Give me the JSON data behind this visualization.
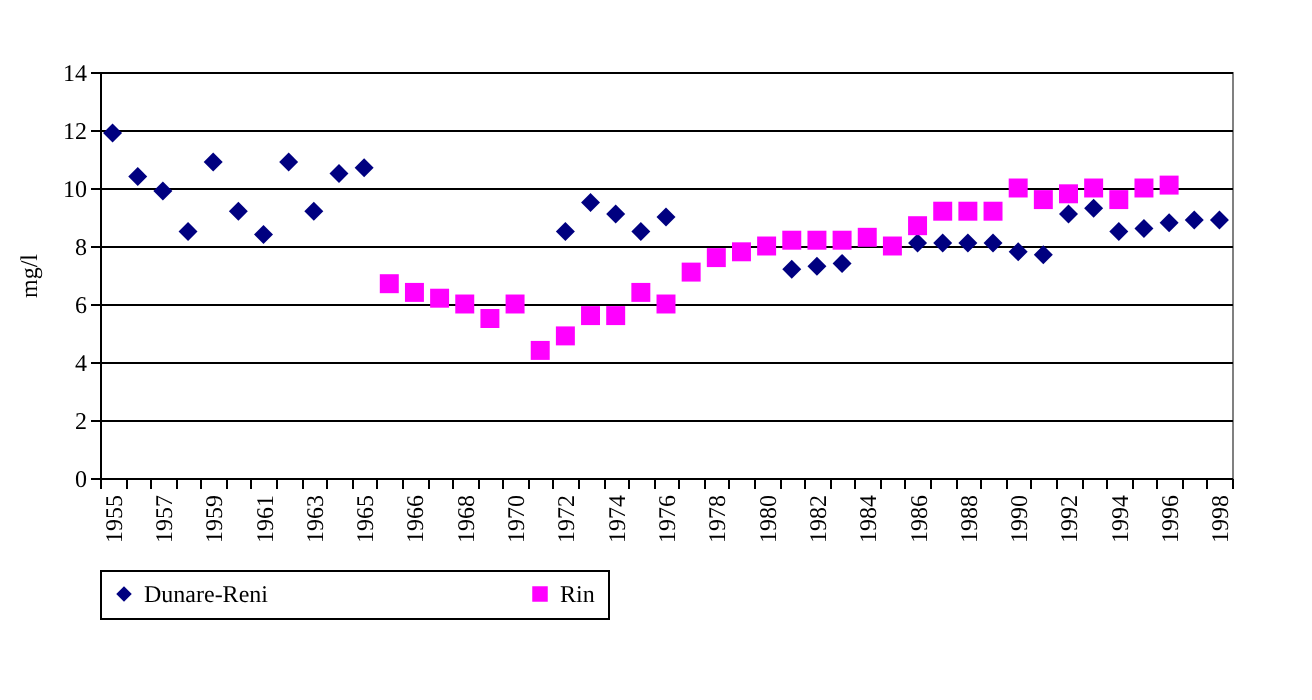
{
  "chart_data": {
    "type": "scatter",
    "ylabel": "mg/l",
    "categories": [
      "1955",
      null,
      "1957",
      null,
      "1959",
      null,
      "1961",
      null,
      "1963",
      null,
      "1965",
      null,
      "1966",
      null,
      "1968",
      null,
      "1970",
      null,
      "1972",
      null,
      "1974",
      null,
      "1976",
      null,
      "1978",
      null,
      "1980",
      null,
      "1982",
      null,
      "1984",
      null,
      "1986",
      null,
      "1988",
      null,
      "1990",
      null,
      "1992",
      null,
      "1994",
      null,
      "1996",
      null,
      "1998"
    ],
    "series": [
      {
        "name": "Dunare-Reni",
        "color": "#000080",
        "marker": "diamond",
        "values": [
          11.9,
          10.4,
          9.9,
          8.5,
          10.9,
          9.2,
          8.4,
          10.9,
          9.2,
          10.5,
          10.7,
          null,
          null,
          null,
          null,
          null,
          null,
          null,
          8.5,
          9.5,
          9.1,
          8.5,
          9.0,
          null,
          null,
          null,
          null,
          7.2,
          7.3,
          7.4,
          null,
          null,
          8.1,
          8.1,
          8.1,
          8.1,
          7.8,
          7.7,
          9.1,
          9.3,
          8.5,
          8.6,
          8.8,
          8.9,
          8.9
        ]
      },
      {
        "name": "Rin",
        "color": "#ff00ff",
        "marker": "square",
        "values": [
          null,
          null,
          null,
          null,
          null,
          null,
          null,
          null,
          null,
          null,
          null,
          6.7,
          6.4,
          6.2,
          6.0,
          5.5,
          6.0,
          4.4,
          4.9,
          5.6,
          5.6,
          6.4,
          6.0,
          7.1,
          7.6,
          7.8,
          8.0,
          8.2,
          8.2,
          8.2,
          8.3,
          8.0,
          8.7,
          9.2,
          9.2,
          9.2,
          10.0,
          9.6,
          9.8,
          10.0,
          9.6,
          10.0,
          10.1,
          null,
          null
        ]
      }
    ],
    "ylim": [
      0,
      14
    ],
    "yticks": [
      0,
      2,
      4,
      6,
      8,
      10,
      12,
      14
    ],
    "grid": "y",
    "legend": "bottom"
  }
}
